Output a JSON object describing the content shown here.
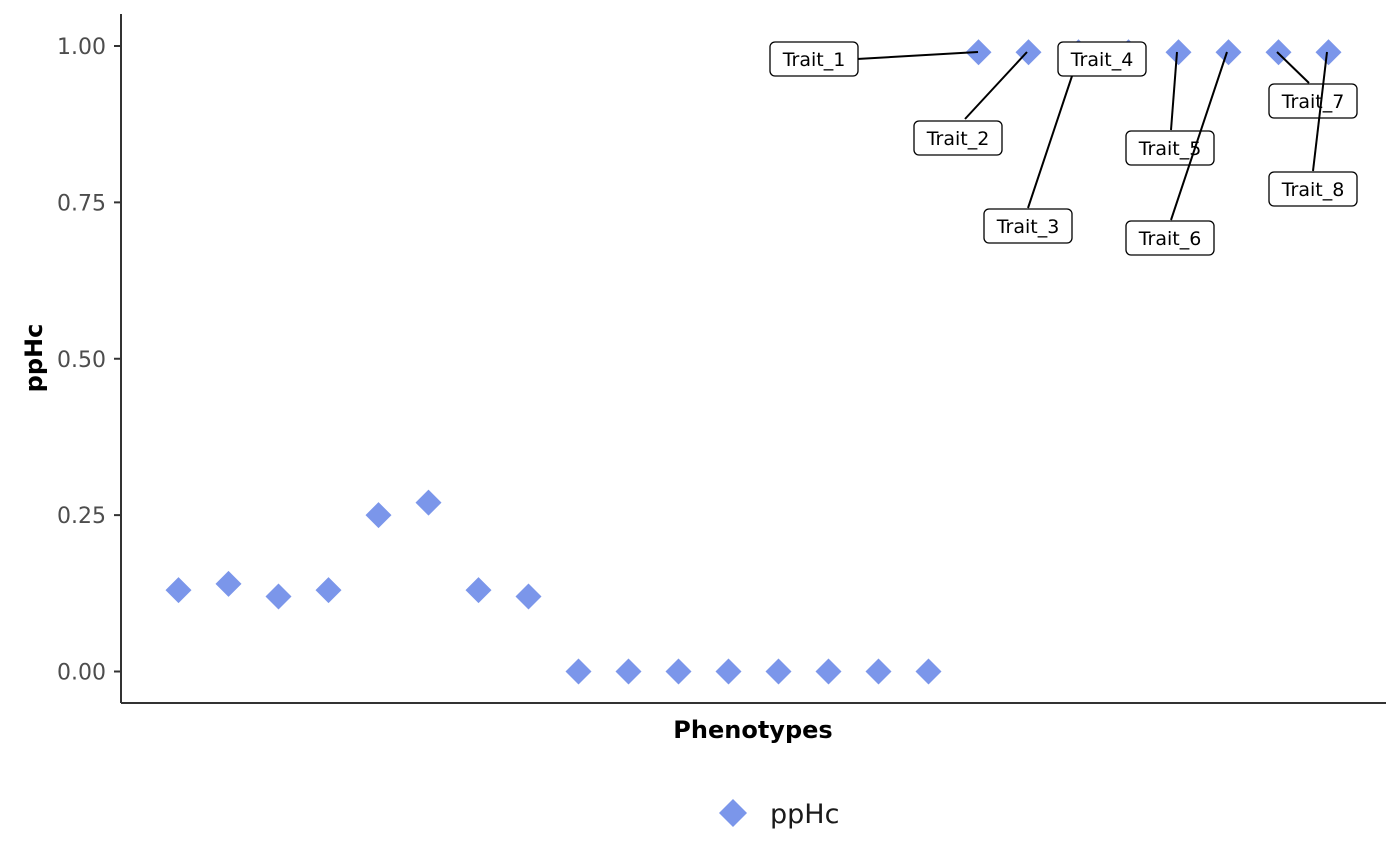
{
  "chart_data": {
    "type": "scatter",
    "xlabel": "Phenotypes",
    "ylabel": "ppHc",
    "ylim": [
      -0.05,
      1.05
    ],
    "yticks": [
      "0.00",
      "0.25",
      "0.50",
      "0.75",
      "1.00"
    ],
    "grid": false,
    "legend_position": "bottom",
    "series": [
      {
        "name": "ppHc",
        "marker": "diamond",
        "color": "#7b96ea",
        "x": [
          1,
          2,
          3,
          4,
          5,
          6,
          7,
          8,
          9,
          10,
          11,
          12,
          13,
          14,
          15,
          16,
          17,
          18,
          19,
          20,
          21,
          22,
          23,
          24
        ],
        "values": [
          0.13,
          0.14,
          0.12,
          0.13,
          0.25,
          0.27,
          0.13,
          0.12,
          0.0,
          0.0,
          0.0,
          0.0,
          0.0,
          0.0,
          0.0,
          0.0,
          0.99,
          0.99,
          0.99,
          0.99,
          0.99,
          0.99,
          0.99,
          0.99
        ]
      }
    ],
    "annotations": [
      {
        "text": "Trait_1",
        "x": 17,
        "y": 0.99
      },
      {
        "text": "Trait_2",
        "x": 18,
        "y": 0.99
      },
      {
        "text": "Trait_3",
        "x": 18,
        "y": 0.99
      },
      {
        "text": "Trait_4",
        "x": 18,
        "y": 0.99
      },
      {
        "text": "Trait_5",
        "x": 21,
        "y": 0.99
      },
      {
        "text": "Trait_6",
        "x": 22,
        "y": 0.99
      },
      {
        "text": "Trait_7",
        "x": 23,
        "y": 0.99
      },
      {
        "text": "Trait_8",
        "x": 24,
        "y": 0.99
      }
    ]
  }
}
